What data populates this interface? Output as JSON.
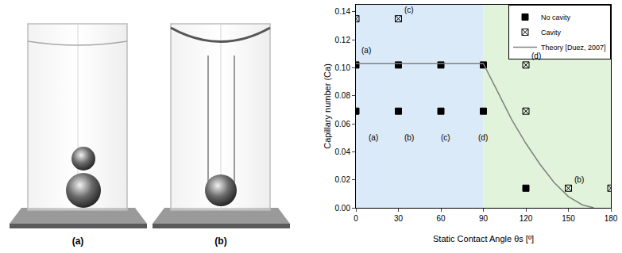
{
  "chart_data": {
    "type": "scatter",
    "x_label": "Static Contact Angle θs [º]",
    "y_label": "Capillary number (Ca)",
    "xlim": [
      0,
      180
    ],
    "xticks": [
      0,
      30,
      60,
      90,
      120,
      150,
      180
    ],
    "ylim": [
      0,
      0.145
    ],
    "yticks": [
      {
        "value": 0,
        "label": "0.00"
      },
      {
        "value": 0.02,
        "label": "0.02"
      },
      {
        "value": 0.04,
        "label": "0.04"
      },
      {
        "value": 0.06,
        "label": "0.06"
      },
      {
        "value": 0.08,
        "label": "0.08"
      },
      {
        "value": 0.1,
        "label": "0.10"
      },
      {
        "value": 0.12,
        "label": "0.12"
      },
      {
        "value": 0.14,
        "label": "0.14"
      }
    ],
    "grid": false,
    "legend": "upper right",
    "regions": [
      {
        "from": 0,
        "to": 90,
        "color": "#dbeaf9"
      },
      {
        "from": 90,
        "to": 180,
        "color": "#e1f3da"
      }
    ],
    "series": [
      {
        "name": "No cavity",
        "type": "scatter",
        "marker": "square",
        "color": "#000000",
        "x": [
          0,
          30,
          60,
          90,
          0,
          30,
          60,
          90,
          120
        ],
        "values": [
          0.102,
          0.102,
          0.102,
          0.102,
          0.069,
          0.069,
          0.069,
          0.069,
          0.014
        ]
      },
      {
        "name": "Cavity",
        "type": "scatter",
        "marker": "square-x-open",
        "color": "#000000",
        "x": [
          0,
          30,
          120,
          120,
          150,
          180
        ],
        "values": [
          0.135,
          0.135,
          0.102,
          0.069,
          0.014,
          0.014
        ]
      },
      {
        "name": "Theory [Duez, 2007]",
        "type": "line",
        "line_style": "solid",
        "color": "#808080",
        "x": [
          0,
          90,
          100,
          110,
          120,
          130,
          140,
          150,
          160,
          168
        ],
        "values": [
          0.103,
          0.103,
          0.083,
          0.063,
          0.046,
          0.031,
          0.018,
          0.008,
          0.002,
          0
        ]
      }
    ],
    "annotations": [
      {
        "text": "(a)",
        "x": 3,
        "y": 0.108
      },
      {
        "text": "(c)",
        "x": 33,
        "y": 0.137
      },
      {
        "text": "(d)",
        "x": 123,
        "y": 0.104
      },
      {
        "text": "(b)",
        "x": 153,
        "y": 0.016
      },
      {
        "text": "(a)",
        "x": 8,
        "y": 0.046
      },
      {
        "text": "(b)",
        "x": 33,
        "y": 0.046
      },
      {
        "text": "(c)",
        "x": 59,
        "y": 0.046
      },
      {
        "text": "(d)",
        "x": 85,
        "y": 0.046
      }
    ]
  },
  "photos": {
    "labels": [
      "(a)",
      "(b)"
    ]
  }
}
